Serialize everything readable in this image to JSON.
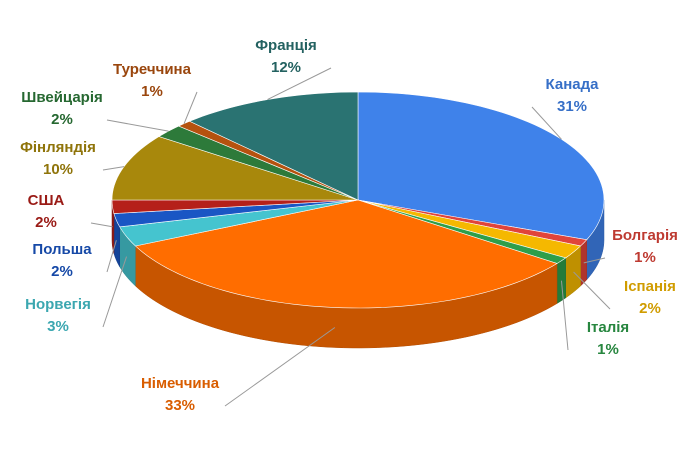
{
  "chart_data": {
    "type": "pie",
    "categories": [
      "Канада",
      "Болгарія",
      "Іспанія",
      "Італія",
      "Німеччина",
      "Норвегія",
      "Польша",
      "США",
      "Фінляндія",
      "Швейцарія",
      "Туреччина",
      "Франція"
    ],
    "values": [
      31,
      1,
      2,
      1,
      33,
      3,
      2,
      2,
      10,
      2,
      1,
      12
    ],
    "value_labels": [
      "31%",
      "1%",
      "2%",
      "1%",
      "33%",
      "3%",
      "2%",
      "2%",
      "10%",
      "2%",
      "1%",
      "12%"
    ],
    "colors": [
      "#3f82ea",
      "#e0443a",
      "#f5b800",
      "#2e9e4a",
      "#ff6d00",
      "#45c4cf",
      "#1a56c4",
      "#b5201a",
      "#a8880c",
      "#2d7a3a",
      "#b5520f",
      "#2a7372"
    ]
  }
}
